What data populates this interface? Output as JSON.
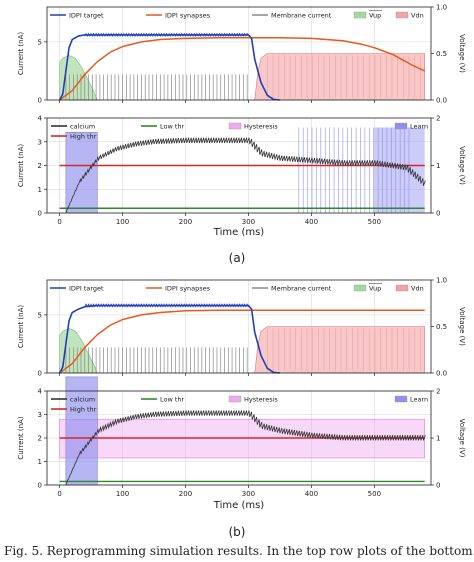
{
  "chart_data": [
    {
      "type": "line",
      "subfigure": "(a)",
      "panels": [
        {
          "ylabel": "Current (nA)",
          "ylabel_right": "Voltage (V)",
          "ylim": [
            0,
            8
          ],
          "ylim_right": [
            0,
            1.0
          ],
          "yticks": [
            "0",
            "5"
          ],
          "yticks_right": [
            "0.0",
            "0.5",
            "1.0"
          ],
          "xlim": [
            -20,
            590
          ],
          "grid": true,
          "legend": [
            "IDPI target",
            "IDPI synapses",
            "Membrane current",
            "Vup",
            "Vdn"
          ],
          "series": [
            {
              "name": "IDPI target",
              "color": "#1f3fbf",
              "x": [
                0,
                5,
                10,
                15,
                20,
                30,
                40,
                60,
                100,
                200,
                300,
                305,
                310,
                320,
                330,
                340,
                350
              ],
              "y": [
                0,
                0.5,
                2.5,
                4.5,
                5.2,
                5.5,
                5.6,
                5.6,
                5.6,
                5.6,
                5.6,
                5.3,
                3.5,
                1.5,
                0.4,
                0.05,
                0
              ]
            },
            {
              "name": "IDPI synapses",
              "color": "#e8591a",
              "x": [
                0,
                20,
                40,
                60,
                80,
                100,
                130,
                160,
                200,
                250,
                300,
                350,
                400,
                450,
                480,
                500,
                530,
                560,
                580
              ],
              "y": [
                0,
                0.8,
                2.2,
                3.3,
                4.1,
                4.6,
                5.0,
                5.2,
                5.3,
                5.35,
                5.35,
                5.35,
                5.3,
                5.1,
                4.8,
                4.5,
                3.9,
                3.0,
                2.5
              ]
            },
            {
              "name": "Membrane current",
              "color": "#888888",
              "x": [
                10,
                300
              ],
              "y": [
                2.2,
                2.2
              ]
            },
            {
              "name": "Vup",
              "color": "#a6d9a0",
              "x": [
                0,
                5,
                15,
                25,
                35,
                45,
                55,
                60
              ],
              "y": [
                0.4,
                0.45,
                0.48,
                0.45,
                0.35,
                0.22,
                0.08,
                0
              ]
            },
            {
              "name": "Vdn",
              "color": "#f4a3a3",
              "x": [
                310,
                315,
                320,
                330,
                580
              ],
              "y": [
                0,
                0.3,
                0.45,
                0.5,
                0.5
              ]
            }
          ]
        },
        {
          "ylabel": "Current (nA)",
          "ylabel_right": "Voltage (V)",
          "ylim": [
            0,
            4
          ],
          "ylim_right": [
            0,
            2
          ],
          "yticks": [
            "0",
            "1",
            "2",
            "3",
            "4"
          ],
          "yticks_right": [
            "0",
            "1",
            "2"
          ],
          "xlabel": "Time (ms)",
          "xticks": [
            "0",
            "100",
            "200",
            "300",
            "400",
            "500"
          ],
          "xlim": [
            -20,
            590
          ],
          "grid": true,
          "legend": [
            "calcium",
            "High thr",
            "Low thr",
            "Hysteresis",
            "Learn"
          ],
          "series": [
            {
              "name": "calcium",
              "color": "#333333",
              "x": [
                10,
                30,
                60,
                90,
                120,
                150,
                200,
                250,
                300,
                320,
                350,
                400,
                450,
                500,
                550,
                580
              ],
              "y": [
                0,
                1.2,
                2.2,
                2.6,
                2.8,
                2.9,
                2.95,
                2.95,
                2.95,
                2.4,
                2.2,
                2.1,
                2.0,
                2.0,
                1.8,
                1.1
              ]
            },
            {
              "name": "High thr",
              "color": "#d62728",
              "x": [
                0,
                580
              ],
              "y": [
                2.0,
                2.0
              ]
            },
            {
              "name": "Low thr",
              "color": "#2a8a2a",
              "x": [
                0,
                580
              ],
              "y": [
                0.2,
                0.2
              ]
            },
            {
              "name": "Learn",
              "color": "#8f8ff0",
              "x": [
                10,
                60
              ],
              "y": [
                1.7,
                1.7
              ]
            }
          ]
        }
      ]
    },
    {
      "type": "line",
      "subfigure": "(b)",
      "panels": [
        {
          "ylabel": "Current (nA)",
          "ylabel_right": "Voltage (V)",
          "ylim": [
            0,
            8
          ],
          "ylim_right": [
            0,
            1.0
          ],
          "yticks": [
            "0",
            "5"
          ],
          "yticks_right": [
            "0.0",
            "0.5",
            "1.0"
          ],
          "xlim": [
            -20,
            590
          ],
          "grid": true,
          "legend": [
            "IDPI target",
            "IDPI synapses",
            "Membrane current",
            "Vup",
            "Vdn"
          ],
          "series": [
            {
              "name": "IDPI target",
              "color": "#1f3fbf",
              "x": [
                0,
                5,
                10,
                15,
                20,
                30,
                40,
                60,
                100,
                200,
                300,
                305,
                310,
                320,
                330,
                340,
                350
              ],
              "y": [
                0,
                0.5,
                2.5,
                4.5,
                5.2,
                5.5,
                5.7,
                5.8,
                5.8,
                5.8,
                5.8,
                5.5,
                3.5,
                1.5,
                0.4,
                0.05,
                0
              ]
            },
            {
              "name": "IDPI synapses",
              "color": "#e8591a",
              "x": [
                0,
                20,
                40,
                60,
                80,
                100,
                130,
                160,
                200,
                250,
                300,
                580
              ],
              "y": [
                0,
                0.8,
                2.2,
                3.3,
                4.1,
                4.6,
                5.0,
                5.2,
                5.35,
                5.4,
                5.4,
                5.4
              ]
            },
            {
              "name": "Membrane current",
              "color": "#888888",
              "x": [
                10,
                300
              ],
              "y": [
                2.2,
                2.2
              ]
            },
            {
              "name": "Vup",
              "color": "#a6d9a0",
              "x": [
                0,
                5,
                15,
                25,
                35,
                45,
                55,
                60
              ],
              "y": [
                0.4,
                0.45,
                0.48,
                0.45,
                0.35,
                0.22,
                0.08,
                0
              ]
            },
            {
              "name": "Vdn",
              "color": "#f4a3a3",
              "x": [
                310,
                315,
                320,
                330,
                580
              ],
              "y": [
                0,
                0.3,
                0.45,
                0.5,
                0.5
              ]
            }
          ]
        },
        {
          "ylabel": "Current (nA)",
          "ylabel_right": "Voltage (V)",
          "ylim": [
            0,
            4
          ],
          "ylim_right": [
            0,
            2
          ],
          "yticks": [
            "0",
            "1",
            "2",
            "3",
            "4"
          ],
          "yticks_right": [
            "0",
            "1",
            "2"
          ],
          "xlabel": "Time (ms)",
          "xticks": [
            "0",
            "100",
            "200",
            "300",
            "400",
            "500"
          ],
          "xlim": [
            -20,
            590
          ],
          "grid": true,
          "legend": [
            "calcium",
            "High thr",
            "Low thr",
            "Hysteresis",
            "Learn"
          ],
          "series": [
            {
              "name": "calcium",
              "color": "#333333",
              "x": [
                10,
                30,
                60,
                90,
                120,
                150,
                200,
                250,
                300,
                320,
                350,
                400,
                450,
                500,
                550,
                580
              ],
              "y": [
                0,
                1.2,
                2.2,
                2.6,
                2.8,
                2.9,
                2.95,
                2.95,
                2.95,
                2.4,
                2.2,
                2.0,
                1.9,
                1.9,
                1.9,
                1.9
              ]
            },
            {
              "name": "High thr",
              "color": "#d62728",
              "x": [
                0,
                580
              ],
              "y": [
                2.0,
                2.0
              ]
            },
            {
              "name": "Low thr",
              "color": "#2a8a2a",
              "x": [
                0,
                580
              ],
              "y": [
                0.15,
                0.15
              ]
            },
            {
              "name": "Hysteresis",
              "color": "#f0a8f0",
              "x": [
                0,
                580
              ],
              "y": [
                2.8,
                2.8
              ]
            },
            {
              "name": "Learn",
              "color": "#8f8ff0",
              "x": [
                10,
                60
              ],
              "y": [
                2.3,
                2.3
              ]
            }
          ]
        }
      ]
    }
  ],
  "caption_a": "(a)",
  "caption_b": "(b)",
  "bottom_caption": "Fig. 5. Reprogramming simulation results. In the top row plots of the bottom..."
}
